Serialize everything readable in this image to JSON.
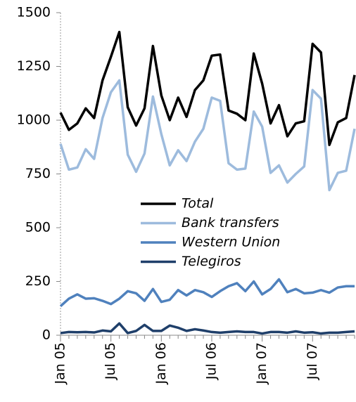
{
  "chart_data": {
    "type": "line",
    "categories": [
      "Jan 05",
      null,
      null,
      null,
      null,
      null,
      "Jul 05",
      null,
      null,
      null,
      null,
      null,
      "Jan 06",
      null,
      null,
      null,
      null,
      null,
      "Jul 06",
      null,
      null,
      null,
      null,
      null,
      "Jan 07",
      null,
      null,
      null,
      null,
      null,
      "Jul 07",
      null,
      null,
      null,
      null,
      null
    ],
    "series": [
      {
        "name": "Total",
        "color": "#000000",
        "values": [
          1035,
          955,
          985,
          1055,
          1010,
          1185,
          1295,
          1410,
          1060,
          975,
          1055,
          1345,
          1115,
          1000,
          1105,
          1015,
          1140,
          1185,
          1300,
          1305,
          1045,
          1030,
          1000,
          1310,
          1170,
          985,
          1070,
          925,
          985,
          995,
          1355,
          1315,
          885,
          990,
          1010,
          1210
        ]
      },
      {
        "name": "Bank transfers",
        "color": "#9dbbdd",
        "values": [
          890,
          770,
          780,
          865,
          820,
          1010,
          1130,
          1185,
          840,
          760,
          845,
          1110,
          935,
          790,
          860,
          810,
          900,
          960,
          1105,
          1090,
          800,
          770,
          775,
          1040,
          970,
          755,
          790,
          710,
          750,
          785,
          1140,
          1100,
          675,
          755,
          765,
          960
        ]
      },
      {
        "name": "Western Union",
        "color": "#4f81bd",
        "values": [
          135,
          170,
          190,
          170,
          172,
          160,
          145,
          170,
          205,
          195,
          160,
          215,
          155,
          165,
          210,
          185,
          210,
          200,
          178,
          205,
          228,
          242,
          205,
          250,
          190,
          215,
          260,
          200,
          215,
          195,
          198,
          210,
          198,
          222,
          228,
          228
        ]
      },
      {
        "name": "Telegiros",
        "color": "#1f3f6a",
        "values": [
          10,
          15,
          14,
          15,
          13,
          22,
          18,
          55,
          10,
          20,
          48,
          20,
          20,
          45,
          35,
          20,
          28,
          22,
          15,
          12,
          15,
          18,
          15,
          15,
          8,
          15,
          15,
          12,
          18,
          12,
          14,
          8,
          12,
          12,
          15,
          18
        ]
      }
    ],
    "ylim": [
      0,
      1500
    ],
    "yticks": [
      0,
      250,
      500,
      750,
      1000,
      1250,
      1500
    ]
  }
}
